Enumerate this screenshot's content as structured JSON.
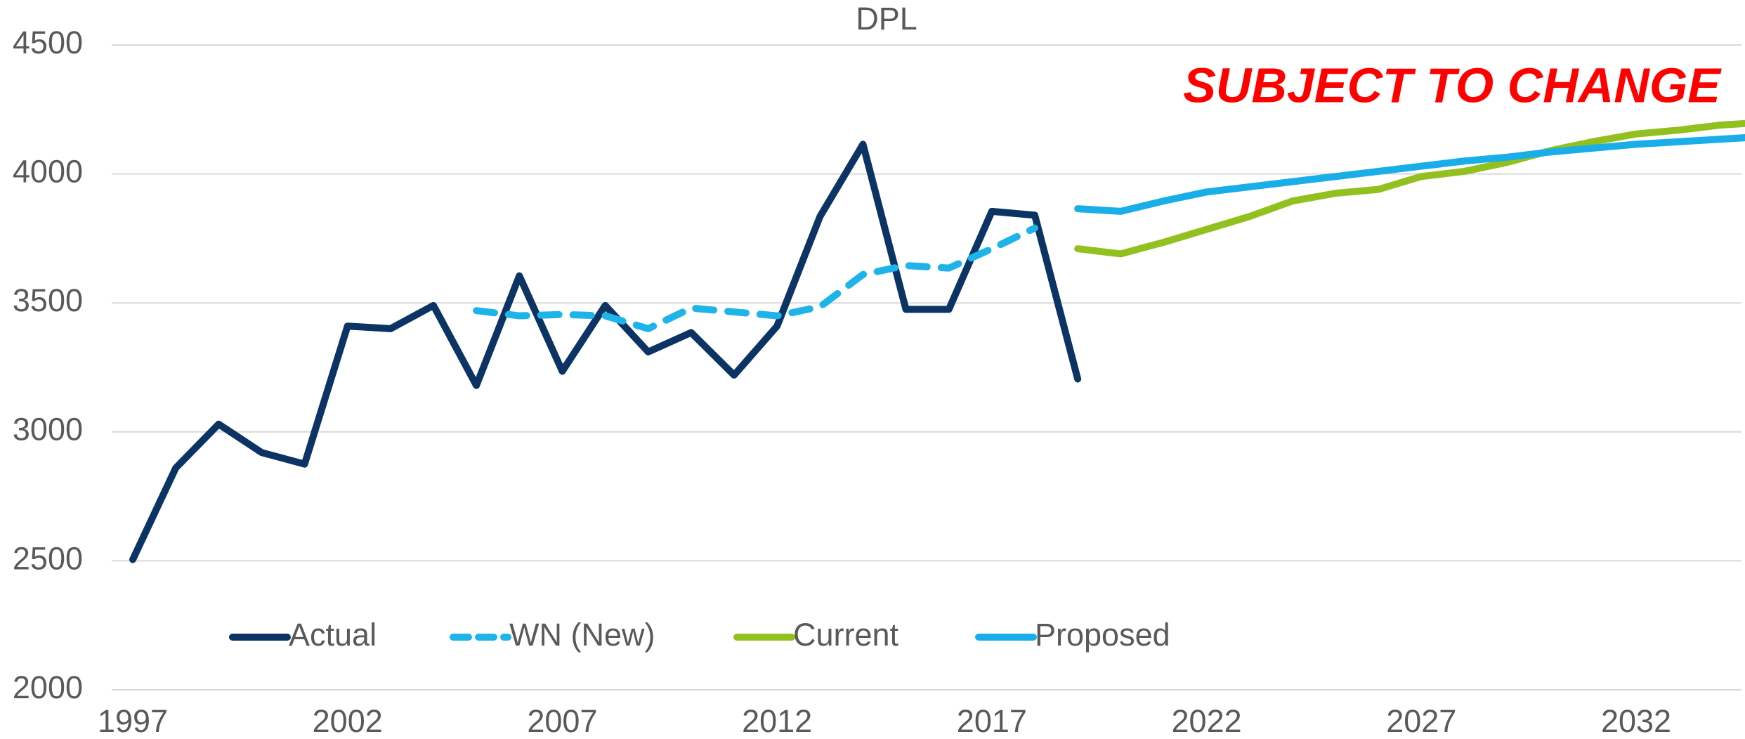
{
  "chart_data": {
    "type": "line",
    "title": "DPL",
    "annotation": "SUBJECT TO CHANGE",
    "annotation_color": "#ff0000",
    "x": [
      1997,
      1998,
      1999,
      2000,
      2001,
      2002,
      2003,
      2004,
      2005,
      2006,
      2007,
      2008,
      2009,
      2010,
      2011,
      2012,
      2013,
      2014,
      2015,
      2016,
      2017,
      2018,
      2019,
      2020,
      2021,
      2022,
      2023,
      2024,
      2025,
      2026,
      2027,
      2028,
      2029,
      2030,
      2031,
      2032,
      2033,
      2034,
      2035
    ],
    "xlim": [
      1997,
      2035
    ],
    "xticks": [
      1997,
      2002,
      2007,
      2012,
      2017,
      2022,
      2027,
      2032
    ],
    "ylim": [
      2000,
      4500
    ],
    "yticks": [
      2000,
      2500,
      3000,
      3500,
      4000,
      4500
    ],
    "grid": true,
    "legend": "bottom",
    "series": [
      {
        "name": "Actual",
        "color": "#0b3464",
        "dashed": false,
        "values": [
          2505,
          2860,
          3030,
          2920,
          2875,
          3410,
          3400,
          3490,
          3180,
          3605,
          3235,
          3490,
          3310,
          3385,
          3220,
          3410,
          3835,
          4115,
          3475,
          3475,
          3855,
          3840,
          3205,
          null,
          null,
          null,
          null,
          null,
          null,
          null,
          null,
          null,
          null,
          null,
          null,
          null,
          null,
          null,
          null
        ]
      },
      {
        "name": "WN (New)",
        "color": "#1eb4ea",
        "dashed": true,
        "values": [
          null,
          null,
          null,
          null,
          null,
          null,
          null,
          null,
          3470,
          3450,
          3455,
          3450,
          3400,
          3480,
          3465,
          3450,
          3485,
          3610,
          3645,
          3635,
          3710,
          3790,
          null,
          null,
          null,
          null,
          null,
          null,
          null,
          null,
          null,
          null,
          null,
          null,
          null,
          null,
          null,
          null,
          null
        ]
      },
      {
        "name": "Current",
        "color": "#92c01f",
        "dashed": false,
        "values": [
          null,
          null,
          null,
          null,
          null,
          null,
          null,
          null,
          null,
          null,
          null,
          null,
          null,
          null,
          null,
          null,
          null,
          null,
          null,
          null,
          null,
          null,
          3710,
          3690,
          3735,
          3785,
          3835,
          3895,
          3925,
          3940,
          3990,
          4010,
          4045,
          4090,
          4125,
          4155,
          4170,
          4190,
          4200
        ]
      },
      {
        "name": "Proposed",
        "color": "#19aee8",
        "dashed": false,
        "values": [
          null,
          null,
          null,
          null,
          null,
          null,
          null,
          null,
          null,
          null,
          null,
          null,
          null,
          null,
          null,
          null,
          null,
          null,
          null,
          null,
          null,
          null,
          3865,
          3855,
          3895,
          3930,
          3950,
          3970,
          3990,
          4010,
          4030,
          4050,
          4065,
          4085,
          4100,
          4115,
          4125,
          4135,
          4145
        ]
      }
    ]
  }
}
